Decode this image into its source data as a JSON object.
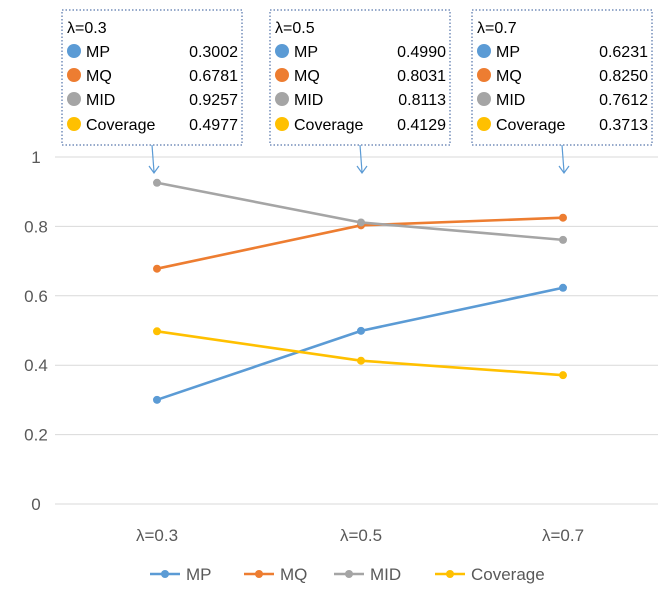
{
  "chart_data": {
    "type": "line",
    "categories": [
      "λ=0.3",
      "λ=0.5",
      "λ=0.7"
    ],
    "series": [
      {
        "name": "MP",
        "values": [
          0.3002,
          0.499,
          0.6231
        ],
        "color": "#5b9bd5"
      },
      {
        "name": "MQ",
        "values": [
          0.6781,
          0.8031,
          0.825
        ],
        "color": "#ed7d31"
      },
      {
        "name": "MID",
        "values": [
          0.9257,
          0.8113,
          0.7612
        ],
        "color": "#a5a5a5"
      },
      {
        "name": "Coverage",
        "values": [
          0.4977,
          0.4129,
          0.3713
        ],
        "color": "#ffc000"
      }
    ],
    "y_ticks": [
      "0",
      "0.2",
      "0.4",
      "0.6",
      "0.8",
      "1"
    ],
    "ylim": [
      0,
      1
    ],
    "grid": true,
    "legend_position": "bottom",
    "annotations": [
      {
        "title": "λ=0.3",
        "rows": [
          {
            "label": "MP",
            "value": "0.3002"
          },
          {
            "label": "MQ",
            "value": "0.6781"
          },
          {
            "label": "MID",
            "value": "0.9257"
          },
          {
            "label": "Coverage",
            "value": "0.4977"
          }
        ]
      },
      {
        "title": "λ=0.5",
        "rows": [
          {
            "label": "MP",
            "value": "0.4990"
          },
          {
            "label": "MQ",
            "value": "0.8031"
          },
          {
            "label": "MID",
            "value": "0.8113"
          },
          {
            "label": "Coverage",
            "value": "0.4129"
          }
        ]
      },
      {
        "title": "λ=0.7",
        "rows": [
          {
            "label": "MP",
            "value": "0.6231"
          },
          {
            "label": "MQ",
            "value": "0.8250"
          },
          {
            "label": "MID",
            "value": "0.7612"
          },
          {
            "label": "Coverage",
            "value": "0.3713"
          }
        ]
      }
    ]
  }
}
